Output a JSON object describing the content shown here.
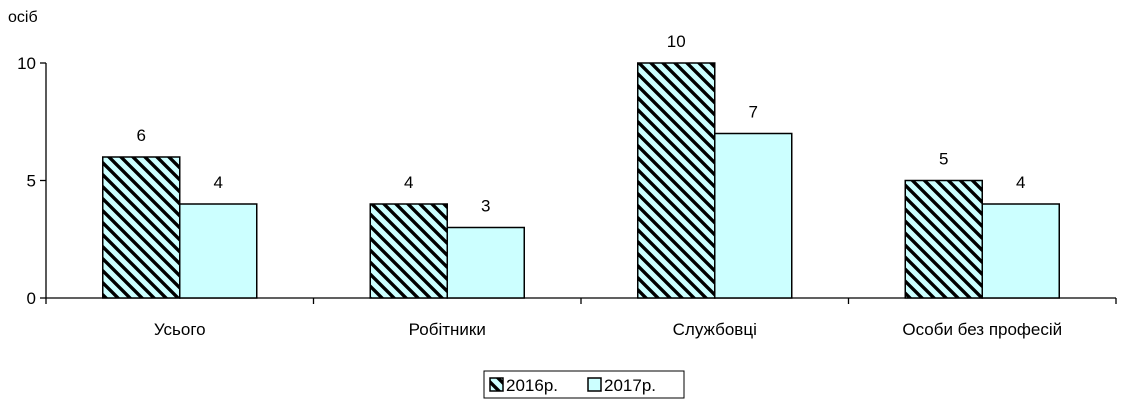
{
  "chart_data": {
    "type": "bar",
    "ylabel": "осіб",
    "ylim": [
      0,
      10
    ],
    "yticks": [
      0,
      5,
      10
    ],
    "grid": false,
    "legend_position": "bottom-center",
    "categories": [
      "Усього",
      "Робітники",
      "Службовці",
      "Особи без професій"
    ],
    "series": [
      {
        "name": "2016р.",
        "values": [
          6,
          4,
          10,
          5
        ],
        "color": "#ccffff",
        "pattern": "diagonal-hatch"
      },
      {
        "name": "2017р.",
        "values": [
          4,
          3,
          7,
          4
        ],
        "color": "#ccffff",
        "pattern": "solid"
      }
    ]
  }
}
